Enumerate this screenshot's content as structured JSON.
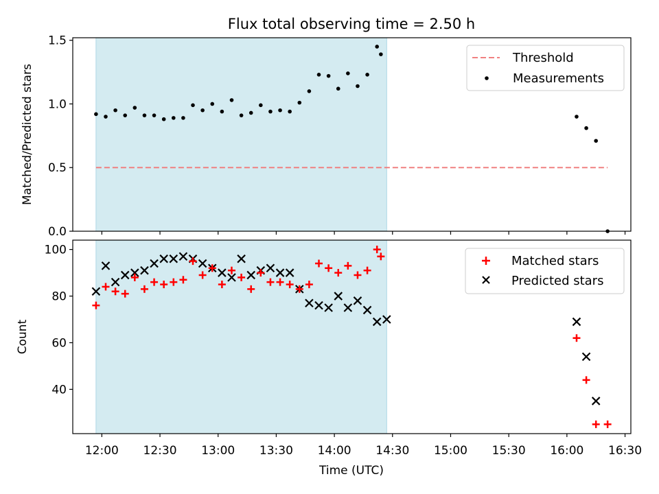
{
  "chart_data": {
    "title": "Flux total observing time = 2.50 h",
    "xlabel": "Time (UTC)",
    "x_ticks": [
      "12:00",
      "12:30",
      "13:00",
      "13:30",
      "14:00",
      "14:30",
      "15:00",
      "15:30",
      "16:00",
      "16:30"
    ],
    "x_tick_minutes": [
      720,
      750,
      780,
      810,
      840,
      870,
      900,
      930,
      960,
      990
    ],
    "xlim_minutes": [
      705,
      993
    ],
    "shaded_span_minutes": [
      717,
      867
    ],
    "shaded_color": "#d4ebf1",
    "top": {
      "type": "scatter",
      "ylabel": "Matched/Predicted stars",
      "ylim": [
        0,
        1.52
      ],
      "y_ticks": [
        0.0,
        0.5,
        1.0,
        1.5
      ],
      "y_tick_labels": [
        "0.0",
        "0.5",
        "1.0",
        "1.5"
      ],
      "legend_location": "top-right",
      "threshold": {
        "name": "Threshold",
        "value": 0.5,
        "x_range_minutes": [
          717,
          981
        ],
        "color": "#f08080"
      },
      "measurements": {
        "name": "Measurements",
        "color": "#000000",
        "x_minutes": [
          717,
          722,
          727,
          732,
          737,
          742,
          747,
          752,
          757,
          762,
          767,
          772,
          777,
          782,
          787,
          792,
          797,
          802,
          807,
          812,
          817,
          822,
          827,
          832,
          837,
          842,
          847,
          852,
          857,
          862,
          864,
          965,
          970,
          975,
          981
        ],
        "values": [
          0.92,
          0.9,
          0.95,
          0.91,
          0.97,
          0.91,
          0.91,
          0.88,
          0.89,
          0.89,
          0.99,
          0.95,
          1.0,
          0.94,
          1.03,
          0.91,
          0.93,
          0.99,
          0.94,
          0.95,
          0.94,
          1.01,
          1.1,
          1.23,
          1.22,
          1.12,
          1.24,
          1.14,
          1.23,
          1.45,
          1.39,
          0.9,
          0.81,
          0.71,
          0.0
        ]
      }
    },
    "bottom": {
      "type": "scatter",
      "ylabel": "Count",
      "ylim": [
        21,
        104
      ],
      "y_ticks": [
        40,
        60,
        80,
        100
      ],
      "y_tick_labels": [
        "40",
        "60",
        "80",
        "100"
      ],
      "legend_location": "top-right",
      "series": [
        {
          "name": "Matched stars",
          "marker": "plus",
          "color": "#ff0000",
          "x_minutes": [
            717,
            722,
            727,
            732,
            737,
            742,
            747,
            752,
            757,
            762,
            767,
            772,
            777,
            782,
            787,
            792,
            797,
            802,
            807,
            812,
            817,
            822,
            827,
            832,
            837,
            842,
            847,
            852,
            857,
            862,
            864,
            965,
            970,
            975,
            981
          ],
          "values": [
            76,
            84,
            82,
            81,
            88,
            83,
            86,
            85,
            86,
            87,
            95,
            89,
            92,
            85,
            91,
            88,
            83,
            90,
            86,
            86,
            85,
            83,
            85,
            94,
            92,
            90,
            93,
            89,
            91,
            100,
            97,
            62,
            44,
            25,
            25
          ]
        },
        {
          "name": "Predicted stars",
          "marker": "x",
          "color": "#000000",
          "x_minutes": [
            717,
            722,
            727,
            732,
            737,
            742,
            747,
            752,
            757,
            762,
            767,
            772,
            777,
            782,
            787,
            792,
            797,
            802,
            807,
            812,
            817,
            822,
            827,
            832,
            837,
            842,
            847,
            852,
            857,
            862,
            867,
            965,
            970,
            975
          ],
          "values": [
            82,
            93,
            86,
            89,
            90,
            91,
            94,
            96,
            96,
            97,
            96,
            94,
            92,
            90,
            88,
            96,
            89,
            91,
            92,
            90,
            90,
            83,
            77,
            76,
            75,
            80,
            75,
            78,
            74,
            69,
            70,
            69,
            54,
            35
          ]
        }
      ]
    }
  }
}
